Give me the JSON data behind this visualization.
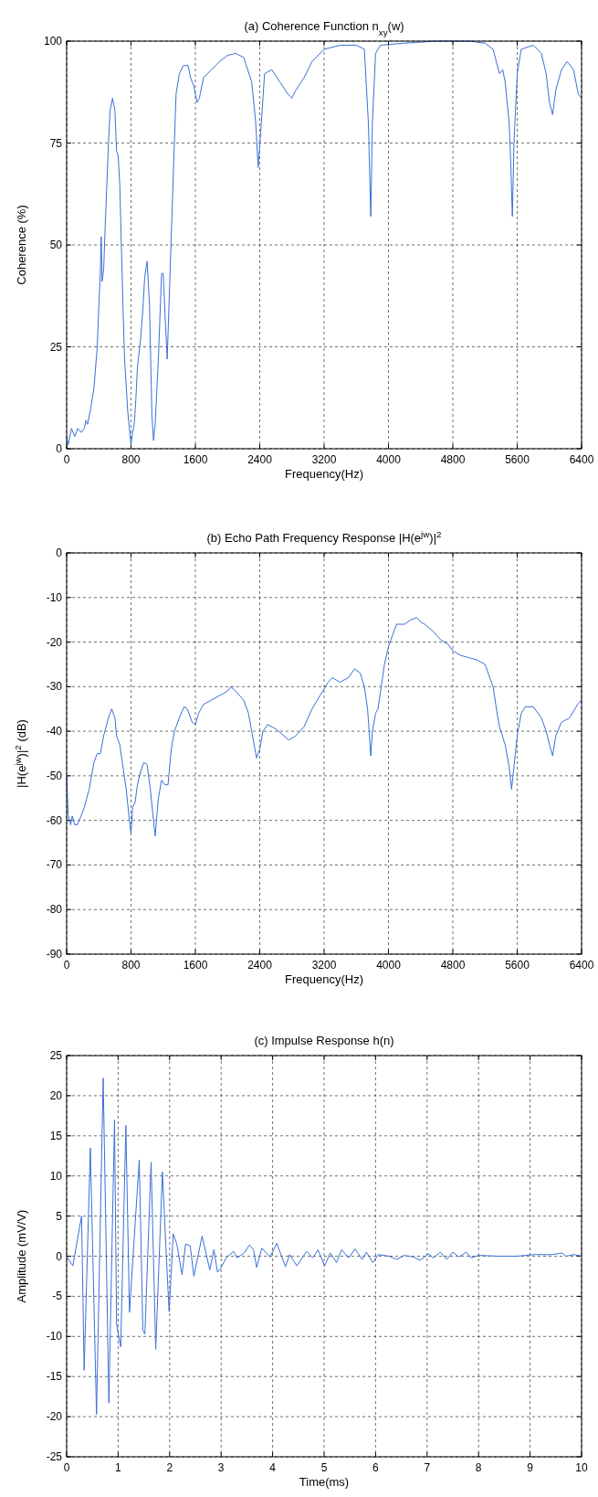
{
  "chart_data": [
    {
      "type": "line",
      "title": "(a) Coherence Function n$_{xy}$(w)",
      "xlabel": "Frequency(Hz)",
      "ylabel": "Coherence (%)",
      "xlim": [
        0,
        6400
      ],
      "xticks": [
        0,
        800,
        1600,
        2400,
        3200,
        4000,
        4800,
        5600,
        6400
      ],
      "ylim": [
        0,
        100
      ],
      "yticks": [
        0,
        25,
        50,
        75,
        100
      ],
      "grid": true,
      "line_style": "solid",
      "series": [
        {
          "color": "#3a6fd8",
          "x": [
            0,
            20,
            60,
            100,
            140,
            180,
            220,
            240,
            260,
            300,
            340,
            380,
            400,
            420,
            430,
            440,
            460,
            480,
            520,
            540,
            570,
            600,
            620,
            640,
            660,
            700,
            720,
            760,
            780,
            800,
            820,
            840,
            860,
            880,
            920,
            950,
            970,
            1000,
            1030,
            1060,
            1080,
            1100,
            1140,
            1180,
            1200,
            1230,
            1250,
            1280,
            1330,
            1360,
            1400,
            1450,
            1510,
            1540,
            1580,
            1620,
            1650,
            1700,
            1800,
            1900,
            2000,
            2100,
            2200,
            2300,
            2350,
            2380,
            2420,
            2460,
            2550,
            2650,
            2750,
            2800,
            2850,
            2950,
            3050,
            3200,
            3400,
            3600,
            3700,
            3750,
            3780,
            3800,
            3840,
            3900,
            4200,
            4600,
            5000,
            5200,
            5300,
            5380,
            5420,
            5450,
            5500,
            5520,
            5540,
            5560,
            5600,
            5650,
            5800,
            5900,
            5960,
            6000,
            6040,
            6080,
            6150,
            6220,
            6300,
            6360,
            6400
          ],
          "values": [
            3,
            1,
            5,
            3,
            5,
            4,
            5,
            7,
            6,
            10,
            15,
            25,
            35,
            44,
            52,
            41,
            44,
            55,
            75,
            83,
            86,
            83,
            73,
            72,
            65,
            35,
            22,
            9,
            5,
            1,
            4,
            6,
            12,
            20,
            27,
            35,
            42,
            46,
            35,
            8,
            2,
            6,
            22,
            43,
            43,
            30,
            22,
            40,
            70,
            87,
            92,
            94,
            94,
            91,
            89,
            85,
            86,
            91,
            93,
            95,
            96.5,
            97,
            96,
            90,
            80,
            69,
            80,
            92,
            93,
            90,
            87,
            86,
            88,
            91,
            95,
            98,
            99,
            99,
            98,
            80,
            57,
            80,
            97,
            99,
            99.5,
            100,
            100,
            99.5,
            98,
            92,
            93,
            90,
            80,
            70,
            57,
            75,
            92,
            98,
            99,
            97,
            92,
            85,
            82,
            88,
            93,
            95,
            93,
            87,
            86
          ]
        }
      ]
    },
    {
      "type": "line",
      "title": "(b) Echo Path Frequency Response |H(e$^{jw}$)|$^{2}$",
      "xlabel": "Frequency(Hz)",
      "ylabel": "|H(e$^{jw}$)|$^{2}$ (dB)",
      "xlim": [
        0,
        6400
      ],
      "xticks": [
        0,
        800,
        1600,
        2400,
        3200,
        4000,
        4800,
        5600,
        6400
      ],
      "ylim": [
        -90,
        0
      ],
      "yticks": [
        -90,
        -80,
        -70,
        -60,
        -50,
        -40,
        -30,
        -20,
        -10,
        0
      ],
      "grid": true,
      "line_style": "solid",
      "series": [
        {
          "color": "#3a6fd8",
          "x": [
            0,
            20,
            50,
            70,
            100,
            130,
            180,
            220,
            280,
            340,
            380,
            420,
            460,
            520,
            560,
            600,
            620,
            660,
            700,
            740,
            780,
            800,
            820,
            850,
            880,
            920,
            960,
            1000,
            1040,
            1080,
            1100,
            1140,
            1180,
            1220,
            1260,
            1300,
            1340,
            1400,
            1460,
            1500,
            1560,
            1600,
            1640,
            1700,
            1800,
            1900,
            2000,
            2040,
            2100,
            2200,
            2260,
            2300,
            2360,
            2400,
            2440,
            2500,
            2600,
            2700,
            2760,
            2850,
            2950,
            3050,
            3150,
            3250,
            3300,
            3400,
            3500,
            3580,
            3650,
            3700,
            3740,
            3760,
            3780,
            3800,
            3840,
            3870,
            3950,
            4000,
            4050,
            4100,
            4200,
            4280,
            4350,
            4400,
            4450,
            4550,
            4650,
            4740,
            4800,
            4900,
            5000,
            5100,
            5200,
            5300,
            5350,
            5380,
            5450,
            5500,
            5530,
            5560,
            5600,
            5650,
            5700,
            5800,
            5900,
            5960,
            6000,
            6040,
            6080,
            6150,
            6250,
            6350,
            6400
          ],
          "values": [
            -50,
            -59,
            -61,
            -59,
            -61,
            -61,
            -59,
            -57,
            -53,
            -47,
            -45,
            -45,
            -41,
            -37,
            -35,
            -37,
            -41,
            -43,
            -48,
            -53,
            -60,
            -63,
            -57,
            -56,
            -52,
            -49,
            -47,
            -47.5,
            -53,
            -60,
            -63.5,
            -55,
            -51,
            -52,
            -52,
            -44,
            -40,
            -37,
            -34.5,
            -35,
            -38,
            -38.5,
            -36,
            -34,
            -33,
            -32,
            -31,
            -30,
            -31,
            -33,
            -36,
            -40,
            -46,
            -44,
            -40,
            -38.5,
            -39.5,
            -41,
            -42,
            -41,
            -39,
            -35,
            -32,
            -29,
            -28,
            -29,
            -28,
            -26,
            -27,
            -30,
            -35,
            -40,
            -45.5,
            -40,
            -36,
            -35,
            -25,
            -21,
            -18.5,
            -16,
            -16,
            -15,
            -14.5,
            -15.5,
            -16,
            -17.5,
            -19.5,
            -20.5,
            -22,
            -23,
            -23.5,
            -24,
            -25,
            -30,
            -36,
            -39,
            -43,
            -48,
            -53,
            -48,
            -41,
            -36,
            -34.5,
            -34.5,
            -37,
            -40,
            -43,
            -45.5,
            -41,
            -38,
            -37,
            -34,
            -33
          ]
        }
      ]
    },
    {
      "type": "line",
      "title": "(c) Impulse Response h(n)",
      "xlabel": "Time(ms)",
      "ylabel": "Amplitude (mV/V)",
      "xlim": [
        0,
        10
      ],
      "xticks": [
        0,
        1,
        2,
        3,
        4,
        5,
        6,
        7,
        8,
        9,
        10
      ],
      "ylim": [
        -25,
        25
      ],
      "yticks": [
        -25,
        -20,
        -15,
        -10,
        -5,
        0,
        5,
        10,
        15,
        20,
        25
      ],
      "grid": true,
      "line_style": "solid",
      "series": [
        {
          "color": "#3a6fd8",
          "x": [
            0,
            0.12,
            0.29,
            0.34,
            0.46,
            0.58,
            0.71,
            0.82,
            0.93,
            0.97,
            1.05,
            1.15,
            1.22,
            1.41,
            1.48,
            1.52,
            1.64,
            1.73,
            1.86,
            1.94,
            1.99,
            2.07,
            2.14,
            2.24,
            2.31,
            2.4,
            2.47,
            2.63,
            2.78,
            2.86,
            2.93,
            2.99,
            3.1,
            3.24,
            3.31,
            3.45,
            3.55,
            3.63,
            3.69,
            3.79,
            3.95,
            4.08,
            4.25,
            4.33,
            4.47,
            4.66,
            4.78,
            4.88,
            5.01,
            5.12,
            5.24,
            5.34,
            5.48,
            5.6,
            5.74,
            5.82,
            5.95,
            6.05,
            6.26,
            6.41,
            6.56,
            6.73,
            6.87,
            7.03,
            7.12,
            7.26,
            7.38,
            7.5,
            7.62,
            7.76,
            7.86,
            8,
            8.4,
            8.74,
            9.08,
            9.42,
            9.63,
            9.69,
            9.86,
            10
          ],
          "values": [
            0,
            -1.2,
            5,
            -14.2,
            13.5,
            -19.7,
            22.2,
            -18.3,
            17,
            -8.5,
            -11.3,
            16.3,
            -7,
            12,
            -9.2,
            -9.7,
            11.7,
            -11.6,
            10.5,
            -0.5,
            -6.9,
            2.8,
            1.5,
            -2.3,
            1.5,
            1.3,
            -2.5,
            2.5,
            -1.7,
            0.8,
            -2,
            -1.5,
            -0.2,
            0.6,
            -0.2,
            0.4,
            1.4,
            0.8,
            -1.4,
            1,
            -0.1,
            1.6,
            -1.3,
            0.2,
            -1.2,
            0.6,
            -0.2,
            0.8,
            -1.2,
            0.4,
            -0.8,
            0.8,
            -0.2,
            0.9,
            -0.4,
            0.5,
            -0.8,
            0.2,
            0,
            -0.4,
            0.1,
            -0.1,
            -0.5,
            0.3,
            -0.2,
            0.5,
            -0.4,
            0.5,
            -0.1,
            0.5,
            -0.2,
            0.1,
            0,
            0,
            0.2,
            0.2,
            0.4,
            0,
            0.2,
            0
          ]
        }
      ]
    }
  ]
}
